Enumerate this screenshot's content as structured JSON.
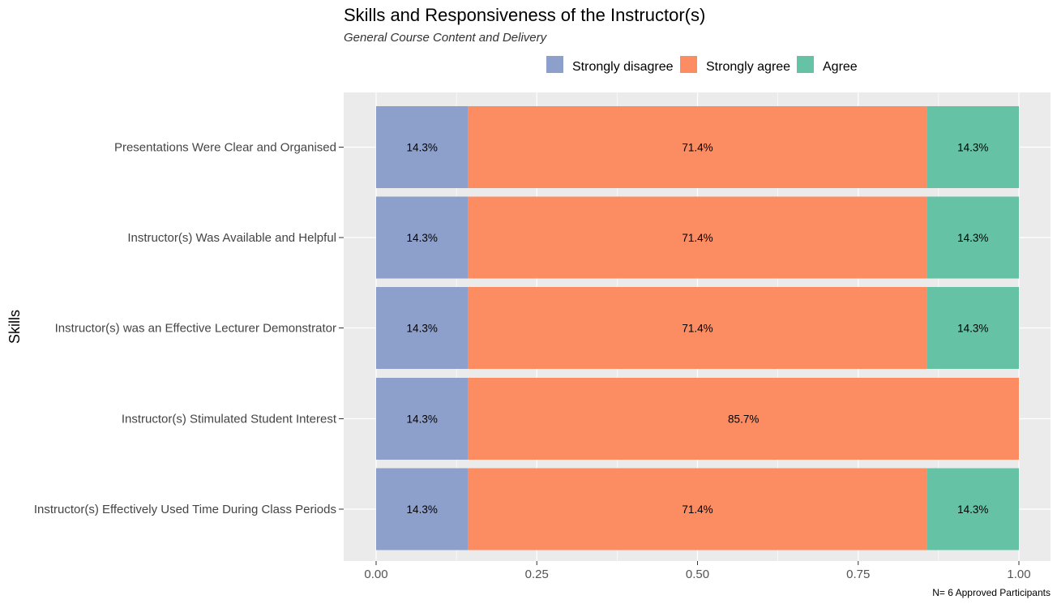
{
  "chart_data": {
    "type": "bar",
    "orientation": "horizontal",
    "stacked": true,
    "title": "Skills and Responsiveness of the Instructor(s)",
    "subtitle": "General Course Content and Delivery",
    "ylabel": "Skills",
    "xlabel": "",
    "caption": "N= 6 Approved Participants",
    "xlim": [
      0,
      1
    ],
    "x_ticks": [
      0,
      0.25,
      0.5,
      0.75,
      1
    ],
    "x_tick_labels": [
      "0.00",
      "0.25",
      "0.50",
      "0.75",
      "1.00"
    ],
    "grid": true,
    "legend_position": "top",
    "categories": [
      "Presentations Were Clear and Organised",
      "Instructor(s) Was Available and Helpful",
      "Instructor(s) was an Effective Lecturer Demonstrator",
      "Instructor(s) Stimulated Student Interest",
      "Instructor(s) Effectively Used Time During Class Periods"
    ],
    "series": [
      {
        "name": "Strongly disagree",
        "color": "#8DA0CB",
        "values": [
          0.143,
          0.143,
          0.143,
          0.143,
          0.143
        ],
        "labels": [
          "14.3%",
          "14.3%",
          "14.3%",
          "14.3%",
          "14.3%"
        ]
      },
      {
        "name": "Strongly agree",
        "color": "#FC8D62",
        "values": [
          0.714,
          0.714,
          0.714,
          0.857,
          0.714
        ],
        "labels": [
          "71.4%",
          "71.4%",
          "71.4%",
          "85.7%",
          "71.4%"
        ]
      },
      {
        "name": "Agree",
        "color": "#66C2A5",
        "values": [
          0.143,
          0.143,
          0.143,
          0,
          0.143
        ],
        "labels": [
          "14.3%",
          "14.3%",
          "14.3%",
          "",
          "14.3%"
        ]
      }
    ]
  }
}
